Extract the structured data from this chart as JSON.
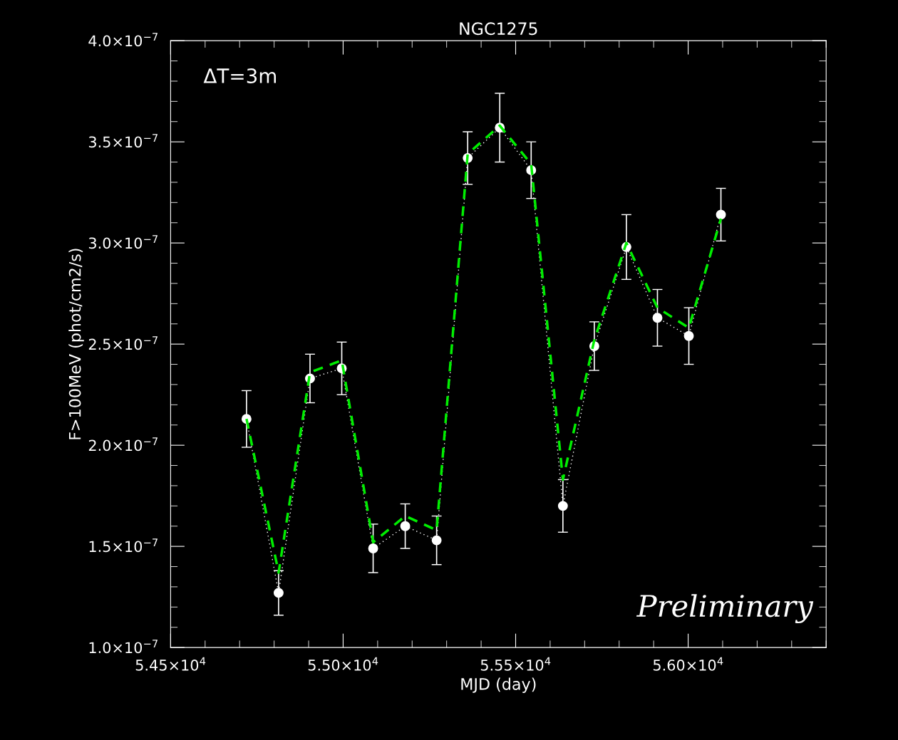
{
  "chart_data": {
    "type": "line",
    "title": "NGC1275",
    "xlabel": "MJD (day)",
    "ylabel": "F>100MeV (phot/cm2/s)",
    "annotations": [
      "ΔT=3m",
      "Preliminary"
    ],
    "xlim": [
      54500,
      56400
    ],
    "ylim": [
      1e-07,
      4e-07
    ],
    "xticks": [
      {
        "value": 54500,
        "label": "5.45×10$^{4}$"
      },
      {
        "value": 55000,
        "label": "5.50×10$^{4}$"
      },
      {
        "value": 55500,
        "label": "5.55×10$^{4}$"
      },
      {
        "value": 56000,
        "label": "5.60×10$^{4}$"
      }
    ],
    "yticks": [
      {
        "value": 1e-07,
        "label": "1.0×10$^{−7}$"
      },
      {
        "value": 1.5e-07,
        "label": "1.5×10$^{−7}$"
      },
      {
        "value": 2e-07,
        "label": "2.0×10$^{−7}$"
      },
      {
        "value": 2.5e-07,
        "label": "2.5×10$^{−7}$"
      },
      {
        "value": 3e-07,
        "label": "3.0×10$^{−7}$"
      },
      {
        "value": 3.5e-07,
        "label": "3.5×10$^{−7}$"
      },
      {
        "value": 4e-07,
        "label": "4.0×10$^{−7}$"
      }
    ],
    "grid": false,
    "legend": false,
    "series": [
      {
        "color": "#ffffff",
        "marker": "circle",
        "line_style": "dotted",
        "x": [
          54720,
          54813,
          54904,
          54996,
          55087,
          55180,
          55271,
          55361,
          55454,
          55545,
          55637,
          55728,
          55821,
          55911,
          56002,
          56095
        ],
        "values": [
          2.13e-07,
          1.27e-07,
          2.33e-07,
          2.38e-07,
          1.49e-07,
          1.6e-07,
          1.53e-07,
          3.42e-07,
          3.57e-07,
          3.36e-07,
          1.7e-07,
          2.49e-07,
          2.98e-07,
          2.63e-07,
          2.54e-07,
          3.14e-07
        ],
        "errors": [
          1.4e-08,
          1.1e-08,
          1.2e-08,
          1.3e-08,
          1.2e-08,
          1.1e-08,
          1.2e-08,
          1.3e-08,
          1.7e-08,
          1.4e-08,
          1.3e-08,
          1.2e-08,
          1.6e-08,
          1.4e-08,
          1.4e-08,
          1.3e-08
        ]
      },
      {
        "color": "#00ee00",
        "marker": "none",
        "line_style": "dashed",
        "x": [
          54720,
          54813,
          54904,
          54996,
          55087,
          55180,
          55271,
          55361,
          55454,
          55545,
          55637,
          55728,
          55821,
          55911,
          56002,
          56095
        ],
        "values": [
          2.13e-07,
          1.37e-07,
          2.36e-07,
          2.42e-07,
          1.52e-07,
          1.65e-07,
          1.58e-07,
          3.44e-07,
          3.58e-07,
          3.39e-07,
          1.83e-07,
          2.52e-07,
          3e-07,
          2.68e-07,
          2.58e-07,
          3.12e-07
        ]
      }
    ]
  }
}
